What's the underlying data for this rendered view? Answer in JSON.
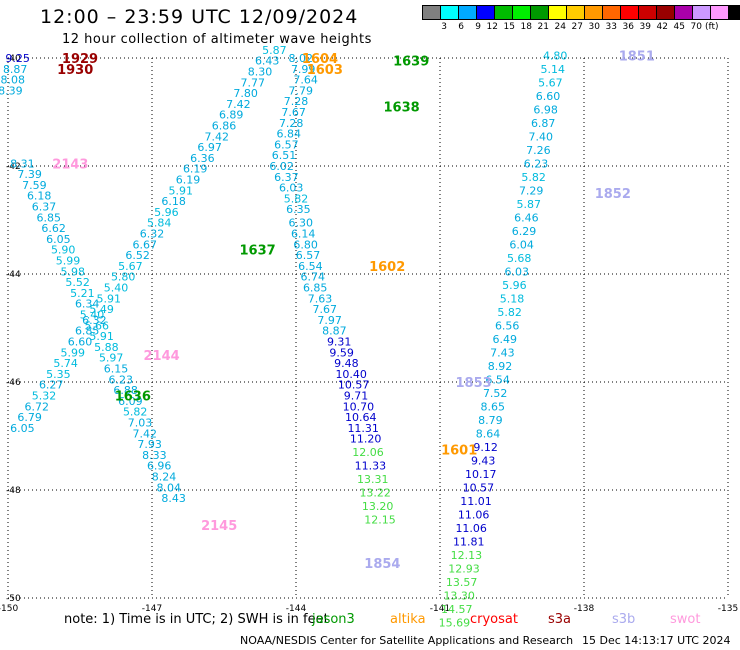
{
  "title": "12:00 – 23:59 UTC 12/09/2024",
  "subtitle": "12 hour collection of altimeter wave heights",
  "color_scale": {
    "unit": "(ft)",
    "labels": [
      "3",
      "6",
      "9",
      "12",
      "15",
      "18",
      "21",
      "24",
      "27",
      "30",
      "33",
      "36",
      "39",
      "42",
      "45",
      "70"
    ],
    "colors": [
      "#808080",
      "#00ffff",
      "#00aaff",
      "#0000ff",
      "#00bb00",
      "#00ee00",
      "#009900",
      "#ffff00",
      "#ffcc00",
      "#ff9900",
      "#ff6600",
      "#ff0000",
      "#cc0000",
      "#990000",
      "#aa00aa",
      "#cc99ff",
      "#ff99ff",
      "#000000"
    ]
  },
  "footer": {
    "note": "note:  1) Time is in UTC;  2) SWH is in feet",
    "credit": "NOAA/NESDIS Center for Satellite Applications and Research",
    "timestamp": "15 Dec 14:13:17 UTC 2024",
    "satellites": [
      {
        "name": "jason3",
        "color": "#009900"
      },
      {
        "name": "altika",
        "color": "#ff9900"
      },
      {
        "name": "cryosat",
        "color": "#ff0000"
      },
      {
        "name": "s3a",
        "color": "#990000"
      },
      {
        "name": "s3b",
        "color": "#aaaaee"
      },
      {
        "name": "swot",
        "color": "#ff99dd"
      }
    ]
  },
  "chart_data": {
    "type": "scatter",
    "xlim": [
      -150,
      -135
    ],
    "ylim": [
      -50,
      -40
    ],
    "xticks": [
      "-150",
      "-147",
      "-144",
      "-141",
      "-138",
      "-135"
    ],
    "yticks": [
      "-40",
      "-42",
      "-44",
      "-46",
      "-48",
      "-50"
    ],
    "grid": true,
    "time_labels": [
      {
        "text": "1929",
        "x": -148.5,
        "y": -40.0,
        "color": "#990000"
      },
      {
        "text": "1930",
        "x": -148.6,
        "y": -40.2,
        "color": "#990000"
      },
      {
        "text": "1604",
        "x": -143.5,
        "y": -40.0,
        "color": "#ff9900"
      },
      {
        "text": "1603",
        "x": -143.4,
        "y": -40.2,
        "color": "#ff9900"
      },
      {
        "text": "1639",
        "x": -141.6,
        "y": -40.05,
        "color": "#009900"
      },
      {
        "text": "1638",
        "x": -141.8,
        "y": -40.9,
        "color": "#009900"
      },
      {
        "text": "1851",
        "x": -136.9,
        "y": -39.95,
        "color": "#aaaaee"
      },
      {
        "text": "2143",
        "x": -148.7,
        "y": -41.95,
        "color": "#ff99dd"
      },
      {
        "text": "1852",
        "x": -137.4,
        "y": -42.5,
        "color": "#aaaaee"
      },
      {
        "text": "1637",
        "x": -144.8,
        "y": -43.55,
        "color": "#009900"
      },
      {
        "text": "1602",
        "x": -142.1,
        "y": -43.85,
        "color": "#ff9900"
      },
      {
        "text": "2144",
        "x": -146.8,
        "y": -45.5,
        "color": "#ff99dd"
      },
      {
        "text": "1853",
        "x": -140.3,
        "y": -46.0,
        "color": "#aaaaee"
      },
      {
        "text": "1636",
        "x": -147.4,
        "y": -46.25,
        "color": "#009900"
      },
      {
        "text": "1601",
        "x": -140.6,
        "y": -47.25,
        "color": "#ff9900"
      },
      {
        "text": "2145",
        "x": -145.6,
        "y": -48.65,
        "color": "#ff99dd"
      },
      {
        "text": "1854",
        "x": -142.2,
        "y": -49.35,
        "color": "#aaaaee"
      }
    ],
    "series": [
      {
        "name": "s3a",
        "points": [
          [
            -149.8,
            -40.0,
            9.25
          ],
          [
            -149.85,
            -40.2,
            8.87
          ],
          [
            -149.9,
            -40.4,
            8.08
          ],
          [
            -149.95,
            -40.6,
            8.39
          ]
        ]
      },
      {
        "name": "swot",
        "points": [
          [
            -149.7,
            -41.95,
            8.31
          ],
          [
            -149.55,
            -42.15,
            7.39
          ],
          [
            -149.45,
            -42.35,
            7.59
          ],
          [
            -149.35,
            -42.55,
            6.18
          ],
          [
            -149.25,
            -42.75,
            6.37
          ],
          [
            -149.15,
            -42.95,
            6.85
          ],
          [
            -149.05,
            -43.15,
            6.62
          ],
          [
            -148.95,
            -43.35,
            6.05
          ],
          [
            -148.85,
            -43.55,
            5.9
          ],
          [
            -148.75,
            -43.75,
            5.99
          ],
          [
            -148.65,
            -43.95,
            5.98
          ],
          [
            -148.55,
            -44.15,
            5.52
          ],
          [
            -148.45,
            -44.35,
            5.21
          ],
          [
            -148.35,
            -44.55,
            6.34
          ],
          [
            -148.25,
            -44.75,
            5.4
          ],
          [
            -148.15,
            -44.95,
            5.66
          ],
          [
            -148.05,
            -45.15,
            5.91
          ],
          [
            -147.95,
            -45.35,
            5.88
          ],
          [
            -147.85,
            -45.55,
            5.97
          ],
          [
            -147.75,
            -45.75,
            6.15
          ],
          [
            -147.65,
            -45.95,
            6.23
          ],
          [
            -147.55,
            -46.15,
            6.88
          ],
          [
            -147.45,
            -46.35,
            6.09
          ],
          [
            -147.35,
            -46.55,
            5.82
          ],
          [
            -147.25,
            -46.75,
            7.03
          ],
          [
            -147.15,
            -46.95,
            7.42
          ],
          [
            -147.05,
            -47.15,
            7.93
          ],
          [
            -146.95,
            -47.35,
            8.33
          ],
          [
            -146.85,
            -47.55,
            6.96
          ],
          [
            -146.75,
            -47.75,
            8.24
          ],
          [
            -146.65,
            -47.95,
            8.04
          ],
          [
            -146.55,
            -48.15,
            8.43
          ]
        ]
      },
      {
        "name": "jason3",
        "points": [
          [
            -149.7,
            -46.85,
            6.05
          ],
          [
            -149.55,
            -46.65,
            6.79
          ],
          [
            -149.4,
            -46.45,
            6.72
          ],
          [
            -149.25,
            -46.25,
            5.32
          ],
          [
            -149.1,
            -46.05,
            6.27
          ],
          [
            -148.95,
            -45.85,
            5.35
          ],
          [
            -148.8,
            -45.65,
            5.74
          ],
          [
            -148.65,
            -45.45,
            5.99
          ],
          [
            -148.5,
            -45.25,
            6.6
          ],
          [
            -148.35,
            -45.05,
            6.85
          ],
          [
            -148.2,
            -44.85,
            6.32
          ],
          [
            -148.05,
            -44.65,
            5.49
          ],
          [
            -147.9,
            -44.45,
            5.91
          ],
          [
            -147.75,
            -44.25,
            5.4
          ],
          [
            -147.6,
            -44.05,
            5.8
          ],
          [
            -147.45,
            -43.85,
            5.67
          ],
          [
            -147.3,
            -43.65,
            6.52
          ],
          [
            -147.15,
            -43.45,
            6.67
          ],
          [
            -147.0,
            -43.25,
            6.32
          ],
          [
            -146.85,
            -43.05,
            5.84
          ],
          [
            -146.7,
            -42.85,
            5.96
          ],
          [
            -146.55,
            -42.65,
            6.18
          ],
          [
            -146.4,
            -42.45,
            5.91
          ],
          [
            -146.25,
            -42.25,
            6.19
          ],
          [
            -146.1,
            -42.05,
            6.19
          ],
          [
            -145.95,
            -41.85,
            6.36
          ],
          [
            -145.8,
            -41.65,
            6.97
          ],
          [
            -145.65,
            -41.45,
            7.42
          ],
          [
            -145.5,
            -41.25,
            6.86
          ],
          [
            -145.35,
            -41.05,
            6.89
          ],
          [
            -145.2,
            -40.85,
            7.42
          ],
          [
            -145.05,
            -40.65,
            7.8
          ],
          [
            -144.9,
            -40.45,
            7.77
          ],
          [
            -144.75,
            -40.25,
            8.3
          ],
          [
            -144.6,
            -40.05,
            6.43
          ],
          [
            -144.45,
            -39.85,
            5.87
          ]
        ]
      },
      {
        "name": "altika",
        "points": [
          [
            -143.9,
            -40.0,
            8.02
          ],
          [
            -143.85,
            -40.2,
            7.99
          ],
          [
            -143.8,
            -40.4,
            7.64
          ],
          [
            -143.9,
            -40.6,
            7.79
          ],
          [
            -144.0,
            -40.8,
            7.28
          ],
          [
            -144.05,
            -41.0,
            7.67
          ],
          [
            -144.1,
            -41.2,
            7.28
          ],
          [
            -144.15,
            -41.4,
            6.84
          ],
          [
            -144.2,
            -41.6,
            6.57
          ],
          [
            -144.25,
            -41.8,
            6.51
          ],
          [
            -144.3,
            -42.0,
            6.02
          ],
          [
            -144.2,
            -42.2,
            6.37
          ],
          [
            -144.1,
            -42.4,
            6.03
          ],
          [
            -144.0,
            -42.6,
            5.82
          ],
          [
            -143.95,
            -42.8,
            6.35
          ],
          [
            -143.9,
            -43.05,
            6.3
          ],
          [
            -143.85,
            -43.25,
            6.14
          ],
          [
            -143.8,
            -43.45,
            6.8
          ],
          [
            -143.75,
            -43.65,
            6.57
          ],
          [
            -143.7,
            -43.85,
            6.54
          ],
          [
            -143.65,
            -44.05,
            6.74
          ],
          [
            -143.6,
            -44.25,
            6.85
          ],
          [
            -143.5,
            -44.45,
            7.63
          ],
          [
            -143.4,
            -44.65,
            7.67
          ],
          [
            -143.3,
            -44.85,
            7.97
          ],
          [
            -143.2,
            -45.05,
            8.87
          ],
          [
            -143.1,
            -45.25,
            9.31
          ],
          [
            -143.05,
            -45.45,
            9.59
          ],
          [
            -142.95,
            -45.65,
            9.48
          ],
          [
            -142.85,
            -45.85,
            10.4
          ],
          [
            -142.8,
            -46.05,
            10.57
          ],
          [
            -142.75,
            -46.25,
            9.71
          ],
          [
            -142.7,
            -46.45,
            10.7
          ],
          [
            -142.65,
            -46.65,
            10.64
          ],
          [
            -142.6,
            -46.85,
            11.31
          ],
          [
            -142.55,
            -47.05,
            11.2
          ],
          [
            -142.5,
            -47.3,
            12.06
          ],
          [
            -142.45,
            -47.55,
            11.33
          ],
          [
            -142.4,
            -47.8,
            13.31
          ],
          [
            -142.35,
            -48.05,
            13.22
          ],
          [
            -142.3,
            -48.3,
            13.2
          ],
          [
            -142.25,
            -48.55,
            12.15
          ]
        ]
      },
      {
        "name": "s3b",
        "points": [
          [
            -138.6,
            -39.95,
            4.8
          ],
          [
            -138.65,
            -40.2,
            5.14
          ],
          [
            -138.7,
            -40.45,
            5.67
          ],
          [
            -138.75,
            -40.7,
            6.6
          ],
          [
            -138.8,
            -40.95,
            6.98
          ],
          [
            -138.85,
            -41.2,
            6.87
          ],
          [
            -138.9,
            -41.45,
            7.4
          ],
          [
            -138.95,
            -41.7,
            7.26
          ],
          [
            -139.0,
            -41.95,
            6.23
          ],
          [
            -139.05,
            -42.2,
            5.82
          ],
          [
            -139.1,
            -42.45,
            7.29
          ],
          [
            -139.15,
            -42.7,
            5.87
          ],
          [
            -139.2,
            -42.95,
            6.46
          ],
          [
            -139.25,
            -43.2,
            6.29
          ],
          [
            -139.3,
            -43.45,
            6.04
          ],
          [
            -139.35,
            -43.7,
            5.68
          ],
          [
            -139.4,
            -43.95,
            6.03
          ],
          [
            -139.45,
            -44.2,
            5.96
          ],
          [
            -139.5,
            -44.45,
            5.18
          ],
          [
            -139.55,
            -44.7,
            5.82
          ],
          [
            -139.6,
            -44.95,
            6.56
          ],
          [
            -139.65,
            -45.2,
            6.49
          ],
          [
            -139.7,
            -45.45,
            7.43
          ],
          [
            -139.75,
            -45.7,
            8.92
          ],
          [
            -139.8,
            -45.95,
            6.54
          ],
          [
            -139.85,
            -46.2,
            7.52
          ],
          [
            -139.9,
            -46.45,
            8.65
          ],
          [
            -139.95,
            -46.7,
            8.79
          ],
          [
            -140.0,
            -46.95,
            8.64
          ],
          [
            -140.05,
            -47.2,
            9.12
          ],
          [
            -140.1,
            -47.45,
            9.43
          ],
          [
            -140.15,
            -47.7,
            10.17
          ],
          [
            -140.2,
            -47.95,
            10.57
          ],
          [
            -140.25,
            -48.2,
            11.01
          ],
          [
            -140.3,
            -48.45,
            11.06
          ],
          [
            -140.35,
            -48.7,
            11.06
          ],
          [
            -140.4,
            -48.95,
            11.81
          ],
          [
            -140.45,
            -49.2,
            12.13
          ],
          [
            -140.5,
            -49.45,
            12.93
          ],
          [
            -140.55,
            -49.7,
            13.57
          ],
          [
            -140.6,
            -49.95,
            13.3
          ],
          [
            -140.65,
            -50.2,
            14.57
          ],
          [
            -140.7,
            -50.45,
            15.69
          ]
        ]
      }
    ]
  }
}
